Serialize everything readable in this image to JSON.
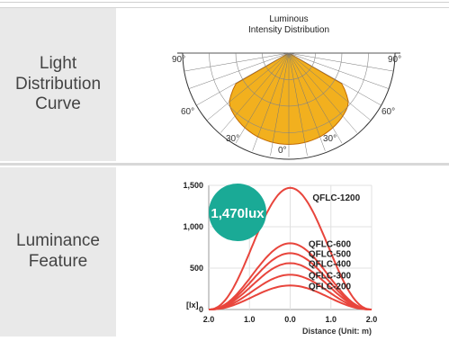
{
  "rows": [
    {
      "label": "Light\nDistribution\nCurve"
    },
    {
      "label": "Luminance\nFeature"
    }
  ],
  "polar": {
    "title_line1": "Luminous",
    "title_line2": "Intensity Distribution",
    "angle_labels": {
      "left90": "90°",
      "right90": "90°",
      "left60": "60°",
      "right60": "60°",
      "left30": "30°",
      "right30": "30°",
      "zero": "0°"
    }
  },
  "badge": {
    "text": "1,470lux",
    "color": "#1aaa96"
  },
  "chart_data": {
    "type": "line",
    "xlabel": "Distance (Unit: m)",
    "ylabel": "[lx]",
    "x_tick_labels": [
      "2.0",
      "1.0",
      "0.0",
      "1.0",
      "2.0"
    ],
    "x": [
      -2.0,
      -1.0,
      0.0,
      1.0,
      2.0
    ],
    "ylim": [
      0,
      1500
    ],
    "y_ticks": [
      0,
      500,
      1000,
      1500
    ],
    "y_tick_labels": [
      "0",
      "500",
      "1,000",
      "1,500"
    ],
    "series": [
      {
        "name": "QFLC-1200",
        "peak": 1470
      },
      {
        "name": "QFLC-600",
        "peak": 800
      },
      {
        "name": "QFLC-500",
        "peak": 680
      },
      {
        "name": "QFLC-400",
        "peak": 560
      },
      {
        "name": "QFLC-300",
        "peak": 420
      },
      {
        "name": "QFLC-200",
        "peak": 290
      }
    ],
    "line_color": "#e8453c"
  }
}
